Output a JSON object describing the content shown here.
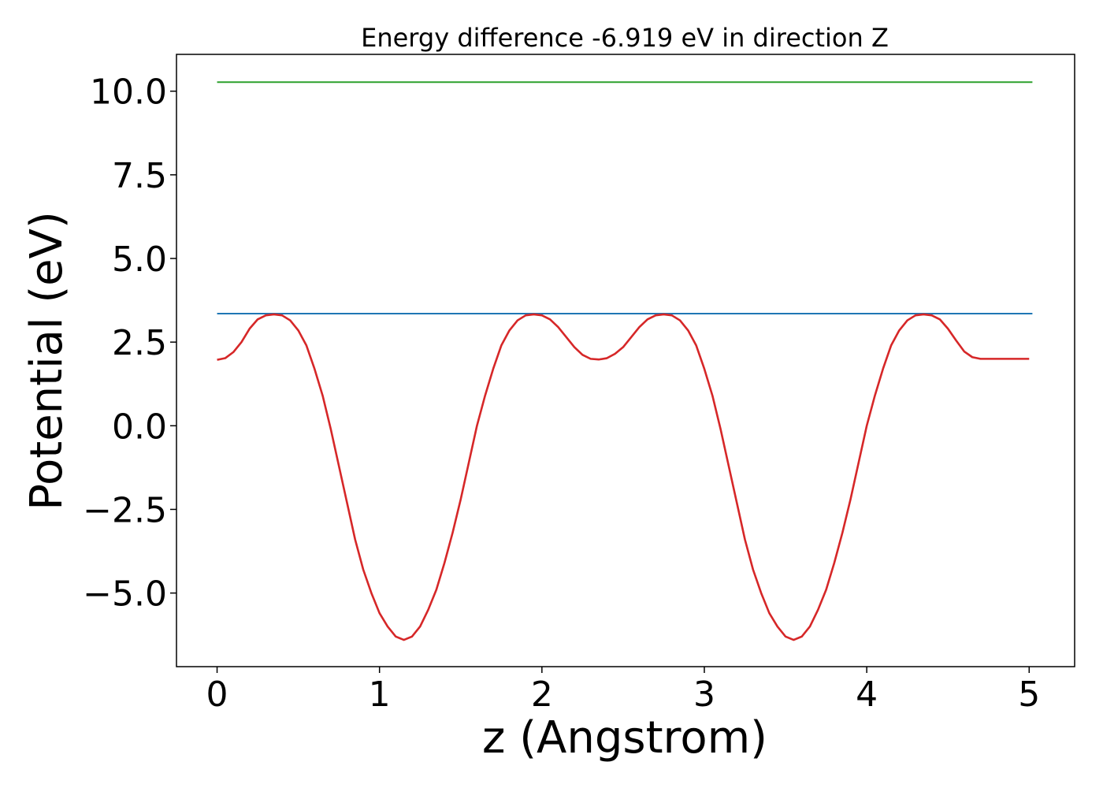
{
  "chart_data": {
    "type": "line",
    "title": "Energy difference -6.919 eV in direction Z",
    "xlabel": "z (Angstrom)",
    "ylabel": "Potential (eV)",
    "xlim": [
      -0.25,
      5.28
    ],
    "ylim": [
      -7.2,
      11.1
    ],
    "xticks": [
      0,
      1,
      2,
      3,
      4,
      5
    ],
    "xtick_labels": [
      "0",
      "1",
      "2",
      "3",
      "4",
      "5"
    ],
    "yticks": [
      -5.0,
      -2.5,
      0.0,
      2.5,
      5.0,
      7.5,
      10.0
    ],
    "ytick_labels": [
      "−5.0",
      "−2.5",
      "0.0",
      "2.5",
      "5.0",
      "7.5",
      "10.0"
    ],
    "grid": false,
    "series": [
      {
        "color": "#2ca02c",
        "x": [
          0,
          5.02
        ],
        "y": [
          10.27,
          10.27
        ]
      },
      {
        "color": "#1f77b4",
        "x": [
          0,
          5.02
        ],
        "y": [
          3.35,
          3.35
        ]
      },
      {
        "color": "#d62728",
        "x": [
          0.0,
          0.05,
          0.1,
          0.15,
          0.2,
          0.25,
          0.3,
          0.35,
          0.4,
          0.45,
          0.5,
          0.55,
          0.6,
          0.65,
          0.7,
          0.75,
          0.8,
          0.85,
          0.9,
          0.95,
          1.0,
          1.05,
          1.1,
          1.15,
          1.2,
          1.25,
          1.3,
          1.35,
          1.4,
          1.45,
          1.5,
          1.55,
          1.6,
          1.65,
          1.7,
          1.75,
          1.8,
          1.85,
          1.9,
          1.95,
          2.0,
          2.05,
          2.1,
          2.15,
          2.2,
          2.25,
          2.3,
          2.35,
          2.4,
          2.45,
          2.5,
          2.55,
          2.6,
          2.65,
          2.7,
          2.75,
          2.8,
          2.85,
          2.9,
          2.95,
          3.0,
          3.05,
          3.1,
          3.15,
          3.2,
          3.25,
          3.3,
          3.35,
          3.4,
          3.45,
          3.5,
          3.55,
          3.6,
          3.65,
          3.7,
          3.75,
          3.8,
          3.85,
          3.9,
          3.95,
          4.0,
          4.05,
          4.1,
          4.15,
          4.2,
          4.25,
          4.3,
          4.35,
          4.4,
          4.45,
          4.5,
          4.55,
          4.6,
          4.65,
          4.7,
          4.75,
          4.8,
          4.85,
          4.9,
          4.95,
          5.0
        ],
        "y": [
          1.97,
          2.02,
          2.2,
          2.5,
          2.9,
          3.18,
          3.3,
          3.33,
          3.3,
          3.15,
          2.85,
          2.4,
          1.7,
          0.9,
          -0.1,
          -1.2,
          -2.3,
          -3.4,
          -4.3,
          -5.0,
          -5.6,
          -6.0,
          -6.3,
          -6.4,
          -6.3,
          -6.0,
          -5.5,
          -4.9,
          -4.1,
          -3.2,
          -2.2,
          -1.1,
          0.0,
          0.9,
          1.7,
          2.4,
          2.85,
          3.15,
          3.3,
          3.33,
          3.3,
          3.18,
          2.95,
          2.65,
          2.35,
          2.12,
          2.0,
          1.98,
          2.02,
          2.15,
          2.35,
          2.65,
          2.95,
          3.18,
          3.3,
          3.33,
          3.3,
          3.15,
          2.85,
          2.4,
          1.7,
          0.9,
          -0.1,
          -1.2,
          -2.3,
          -3.4,
          -4.3,
          -5.0,
          -5.6,
          -6.0,
          -6.3,
          -6.4,
          -6.3,
          -6.0,
          -5.5,
          -4.9,
          -4.1,
          -3.2,
          -2.2,
          -1.1,
          0.0,
          0.9,
          1.7,
          2.4,
          2.85,
          3.15,
          3.3,
          3.33,
          3.3,
          3.18,
          2.9,
          2.55,
          2.22,
          2.05,
          2.0,
          2.0,
          2.0,
          2.0,
          2.0,
          2.0,
          2.0
        ]
      }
    ]
  }
}
